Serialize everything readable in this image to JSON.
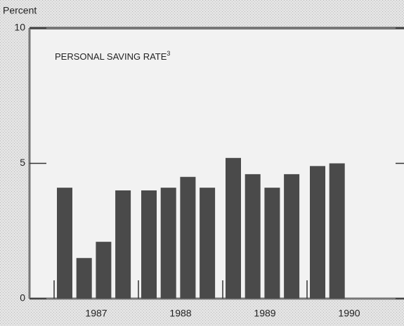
{
  "chart_data": {
    "type": "bar",
    "title": "PERSONAL SAVING RATE",
    "title_footnote": "3",
    "y_label": "Percent",
    "categories": [
      null,
      null,
      null,
      null,
      null,
      null,
      null,
      null,
      null,
      null,
      null,
      null,
      null,
      null
    ],
    "x_groups": [
      "1987",
      "1988",
      "1989",
      "1990"
    ],
    "values": [
      4.1,
      1.5,
      2.1,
      4.0,
      4.0,
      4.1,
      4.5,
      4.1,
      5.2,
      4.6,
      4.1,
      4.6,
      4.9,
      5.0
    ],
    "color": "#4a4a4a",
    "ylim": [
      0,
      10
    ],
    "yticks": [
      0,
      5,
      10
    ]
  }
}
